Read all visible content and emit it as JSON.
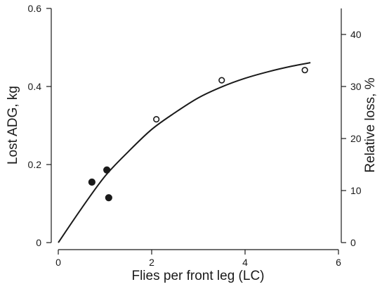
{
  "chart_data": {
    "type": "scatter",
    "title": "",
    "xlabel": "Flies per front leg (LC)",
    "ylabel": "Lost ADG, kg",
    "ylabel_right": "Relative loss, %",
    "xlim": [
      0,
      6
    ],
    "ylim": [
      0,
      0.6
    ],
    "ylim_right": [
      0,
      45
    ],
    "x_ticks": [
      0,
      2,
      4,
      6
    ],
    "y_ticks": [
      0,
      0.2,
      0.4,
      0.6
    ],
    "y_ticks_right": [
      0,
      10,
      20,
      30,
      40
    ],
    "x_tick_labels": [
      "0",
      "2",
      "4",
      "6"
    ],
    "y_tick_labels": [
      "0",
      "0.2",
      "0.4",
      "0.6"
    ],
    "y_tick_labels_right": [
      "0",
      "10",
      "20",
      "30",
      "40"
    ],
    "grid": false,
    "series": [
      {
        "marker": "filled-circle",
        "color": "#1a1a1a",
        "points": [
          {
            "x": 0.72,
            "y": 0.155
          },
          {
            "x": 1.04,
            "y": 0.186
          },
          {
            "x": 1.08,
            "y": 0.115
          }
        ]
      },
      {
        "marker": "open-circle",
        "color": "#1a1a1a",
        "points": [
          {
            "x": 2.1,
            "y": 0.316
          },
          {
            "x": 3.5,
            "y": 0.416
          },
          {
            "x": 5.28,
            "y": 0.442
          }
        ]
      }
    ],
    "fit_curve": {
      "color": "#1a1a1a",
      "points": [
        {
          "x": 0,
          "y": 0
        },
        {
          "x": 0.5,
          "y": 0.088
        },
        {
          "x": 1.0,
          "y": 0.17
        },
        {
          "x": 1.5,
          "y": 0.233
        },
        {
          "x": 2.0,
          "y": 0.29
        },
        {
          "x": 2.5,
          "y": 0.333
        },
        {
          "x": 3.0,
          "y": 0.371
        },
        {
          "x": 3.5,
          "y": 0.399
        },
        {
          "x": 4.0,
          "y": 0.421
        },
        {
          "x": 4.5,
          "y": 0.438
        },
        {
          "x": 5.0,
          "y": 0.452
        },
        {
          "x": 5.4,
          "y": 0.461
        }
      ]
    }
  }
}
